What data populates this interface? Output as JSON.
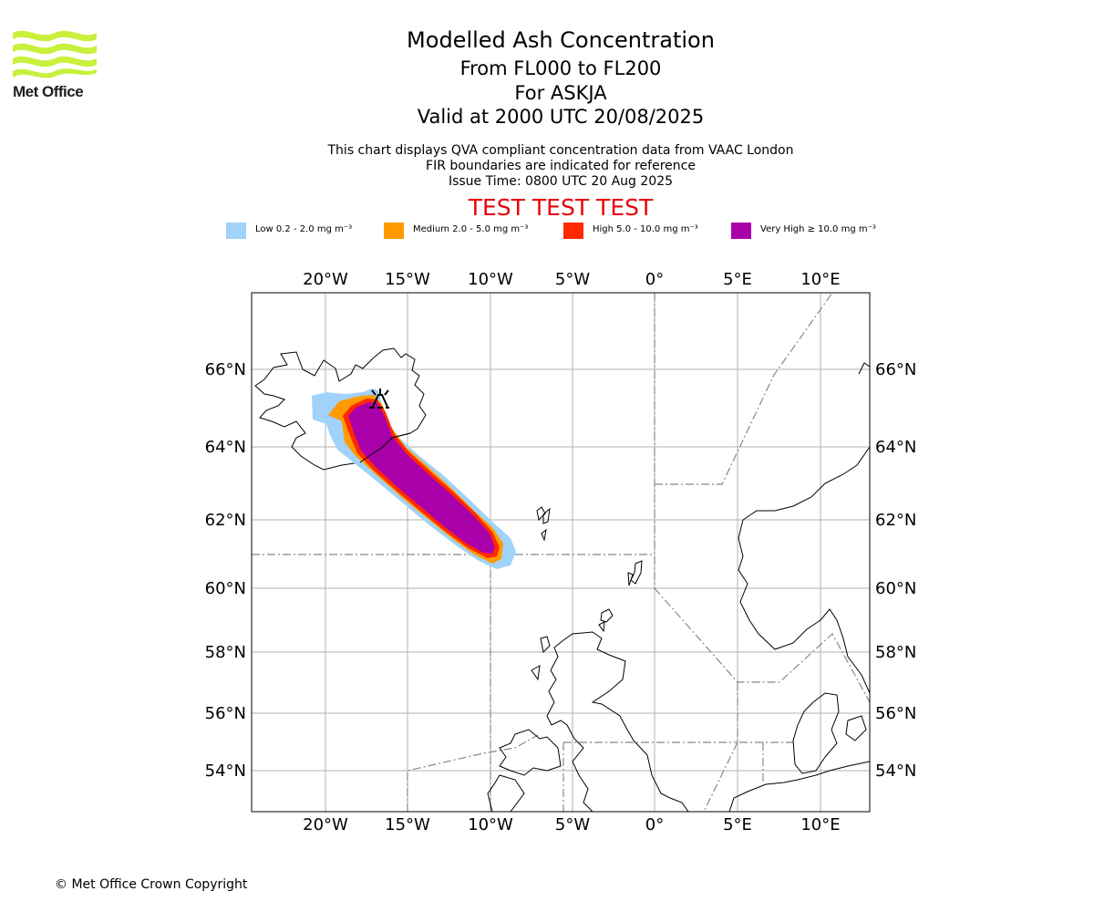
{
  "titles": {
    "main": "Modelled Ash Concentration",
    "range": "From FL000 to FL200",
    "volcano": "For ASKJA",
    "valid": "Valid at 2000 UTC 20/08/2025"
  },
  "subtitles": {
    "line1": "This chart displays QVA compliant concentration data from VAAC London",
    "line2": "FIR boundaries are indicated for reference",
    "line3": "Issue Time: 0800 UTC 20 Aug 2025"
  },
  "banner": "TEST TEST TEST",
  "logo": {
    "text": "Met Office",
    "color": "#c8f03c",
    "icon": "met-office-wave-logo"
  },
  "legend": [
    {
      "label": "Low 0.2 - 2.0 mg m⁻³",
      "color": "#a0d2fa"
    },
    {
      "label": "Medium 2.0 - 5.0 mg m⁻³",
      "color": "#ff9b00"
    },
    {
      "label": "High 5.0 - 10.0 mg m⁻³",
      "color": "#ff2800"
    },
    {
      "label": "Very High  ≥  10.0 mg m⁻³",
      "color": "#aa00aa"
    }
  ],
  "map": {
    "lon_ticks": [
      "20°W",
      "15°W",
      "10°W",
      "5°W",
      "0°",
      "5°E",
      "10°E"
    ],
    "lat_ticks": [
      "66°N",
      "64°N",
      "62°N",
      "60°N",
      "58°N",
      "56°N",
      "54°N"
    ],
    "volcano_icon": "volcano-icon",
    "fir_line_color": "#888888",
    "grid_color": "#b0b0b0"
  },
  "copyright": "© Met Office Crown Copyright"
}
